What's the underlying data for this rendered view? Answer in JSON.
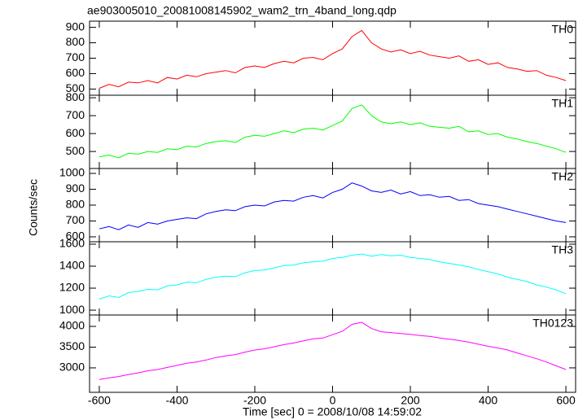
{
  "chart_data": [
    {
      "type": "line",
      "title": "ae903005010_20081008145902_wam2_trn_4band_long.qdp",
      "x": [
        -600,
        -575,
        -550,
        -525,
        -500,
        -475,
        -450,
        -425,
        -400,
        -375,
        -350,
        -325,
        -300,
        -275,
        -250,
        -225,
        -200,
        -175,
        -150,
        -125,
        -100,
        -75,
        -50,
        -25,
        0,
        25,
        50,
        75,
        100,
        125,
        150,
        175,
        200,
        225,
        250,
        275,
        300,
        325,
        350,
        375,
        400,
        425,
        450,
        475,
        500,
        525,
        550,
        575,
        600
      ],
      "series": [
        {
          "name": "TH0",
          "color": "#ff0000",
          "values": [
            505,
            530,
            515,
            545,
            540,
            555,
            540,
            575,
            565,
            590,
            580,
            600,
            610,
            620,
            605,
            640,
            650,
            640,
            665,
            680,
            670,
            700,
            705,
            690,
            730,
            760,
            840,
            880,
            800,
            760,
            740,
            755,
            730,
            745,
            720,
            710,
            700,
            715,
            680,
            690,
            660,
            670,
            640,
            630,
            615,
            620,
            590,
            575,
            555
          ]
        }
      ],
      "xlim": [
        -625,
        625
      ],
      "xticks": [
        -600,
        -400,
        -200,
        0,
        200,
        400,
        600
      ],
      "ylim": [
        460,
        940
      ],
      "yticks": [
        500,
        600,
        700,
        800,
        900
      ]
    },
    {
      "type": "line",
      "x": [
        -600,
        -575,
        -550,
        -525,
        -500,
        -475,
        -450,
        -425,
        -400,
        -375,
        -350,
        -325,
        -300,
        -275,
        -250,
        -225,
        -200,
        -175,
        -150,
        -125,
        -100,
        -75,
        -50,
        -25,
        0,
        25,
        50,
        75,
        100,
        125,
        150,
        175,
        200,
        225,
        250,
        275,
        300,
        325,
        350,
        375,
        400,
        425,
        450,
        475,
        500,
        525,
        550,
        575,
        600
      ],
      "series": [
        {
          "name": "TH1",
          "color": "#00ff00",
          "values": [
            470,
            480,
            465,
            490,
            485,
            500,
            495,
            515,
            510,
            530,
            525,
            545,
            555,
            560,
            550,
            580,
            590,
            585,
            600,
            615,
            605,
            625,
            630,
            620,
            645,
            670,
            740,
            760,
            700,
            665,
            655,
            665,
            650,
            660,
            640,
            635,
            630,
            640,
            610,
            615,
            595,
            600,
            580,
            570,
            555,
            545,
            530,
            515,
            495
          ]
        }
      ],
      "xlim": [
        -625,
        625
      ],
      "xticks": [
        -600,
        -400,
        -200,
        0,
        200,
        400,
        600
      ],
      "ylim": [
        405,
        814
      ],
      "yticks": [
        500,
        600,
        700,
        800
      ]
    },
    {
      "type": "line",
      "ylabel": "Counts/sec",
      "x": [
        -600,
        -575,
        -550,
        -525,
        -500,
        -475,
        -450,
        -425,
        -400,
        -375,
        -350,
        -325,
        -300,
        -275,
        -250,
        -225,
        -200,
        -175,
        -150,
        -125,
        -100,
        -75,
        -50,
        -25,
        0,
        25,
        50,
        75,
        100,
        125,
        150,
        175,
        200,
        225,
        250,
        275,
        300,
        325,
        350,
        375,
        400,
        425,
        450,
        475,
        500,
        525,
        550,
        575,
        600
      ],
      "series": [
        {
          "name": "TH2",
          "color": "#0000ff",
          "values": [
            650,
            665,
            645,
            675,
            660,
            690,
            680,
            700,
            710,
            720,
            715,
            745,
            760,
            770,
            765,
            790,
            800,
            795,
            820,
            830,
            825,
            850,
            860,
            845,
            880,
            900,
            940,
            920,
            890,
            880,
            895,
            870,
            885,
            860,
            865,
            850,
            855,
            830,
            835,
            810,
            800,
            790,
            775,
            760,
            745,
            730,
            715,
            700,
            690
          ]
        }
      ],
      "xlim": [
        -625,
        625
      ],
      "xticks": [
        -600,
        -400,
        -200,
        0,
        200,
        400,
        600
      ],
      "ylim": [
        569,
        1031
      ],
      "yticks": [
        600,
        700,
        800,
        900,
        1000
      ]
    },
    {
      "type": "line",
      "x": [
        -600,
        -575,
        -550,
        -525,
        -500,
        -475,
        -450,
        -425,
        -400,
        -375,
        -350,
        -325,
        -300,
        -275,
        -250,
        -225,
        -200,
        -175,
        -150,
        -125,
        -100,
        -75,
        -50,
        -25,
        0,
        25,
        50,
        75,
        100,
        125,
        150,
        175,
        200,
        225,
        250,
        275,
        300,
        325,
        350,
        375,
        400,
        425,
        450,
        475,
        500,
        525,
        550,
        575,
        600
      ],
      "series": [
        {
          "name": "TH3",
          "color": "#00ffff",
          "values": [
            1100,
            1130,
            1115,
            1160,
            1170,
            1190,
            1185,
            1220,
            1230,
            1255,
            1250,
            1280,
            1300,
            1310,
            1305,
            1340,
            1360,
            1365,
            1385,
            1405,
            1410,
            1430,
            1440,
            1445,
            1470,
            1480,
            1500,
            1510,
            1490,
            1505,
            1495,
            1500,
            1480,
            1470,
            1460,
            1440,
            1425,
            1410,
            1395,
            1370,
            1350,
            1330,
            1300,
            1280,
            1260,
            1230,
            1210,
            1185,
            1150
          ]
        }
      ],
      "xlim": [
        -625,
        625
      ],
      "xticks": [
        -600,
        -400,
        -200,
        0,
        200,
        400,
        600
      ],
      "ylim": [
        956,
        1622
      ],
      "yticks": [
        1000,
        1200,
        1400,
        1600
      ]
    },
    {
      "type": "line",
      "xlabel": "Time [sec] 0 = 2008/10/08 14:59:02",
      "x": [
        -600,
        -575,
        -550,
        -525,
        -500,
        -475,
        -450,
        -425,
        -400,
        -375,
        -350,
        -325,
        -300,
        -275,
        -250,
        -225,
        -200,
        -175,
        -150,
        -125,
        -100,
        -75,
        -50,
        -25,
        0,
        25,
        50,
        75,
        100,
        125,
        150,
        175,
        200,
        225,
        250,
        275,
        300,
        325,
        350,
        375,
        400,
        425,
        450,
        475,
        500,
        525,
        550,
        575,
        600
      ],
      "series": [
        {
          "name": "TH0123",
          "color": "#ff00ff",
          "values": [
            2720,
            2760,
            2790,
            2840,
            2880,
            2930,
            2960,
            3010,
            3060,
            3110,
            3140,
            3190,
            3250,
            3290,
            3320,
            3380,
            3430,
            3460,
            3510,
            3560,
            3600,
            3650,
            3700,
            3720,
            3800,
            3880,
            4050,
            4100,
            3950,
            3870,
            3850,
            3830,
            3810,
            3780,
            3760,
            3720,
            3690,
            3660,
            3620,
            3570,
            3520,
            3480,
            3430,
            3360,
            3290,
            3220,
            3140,
            3050,
            2960
          ]
        }
      ],
      "xlim": [
        -625,
        625
      ],
      "xticks": [
        -600,
        -400,
        -200,
        0,
        200,
        400,
        600
      ],
      "ylim": [
        2410,
        4275
      ],
      "yticks": [
        3000,
        3500,
        4000
      ]
    }
  ]
}
